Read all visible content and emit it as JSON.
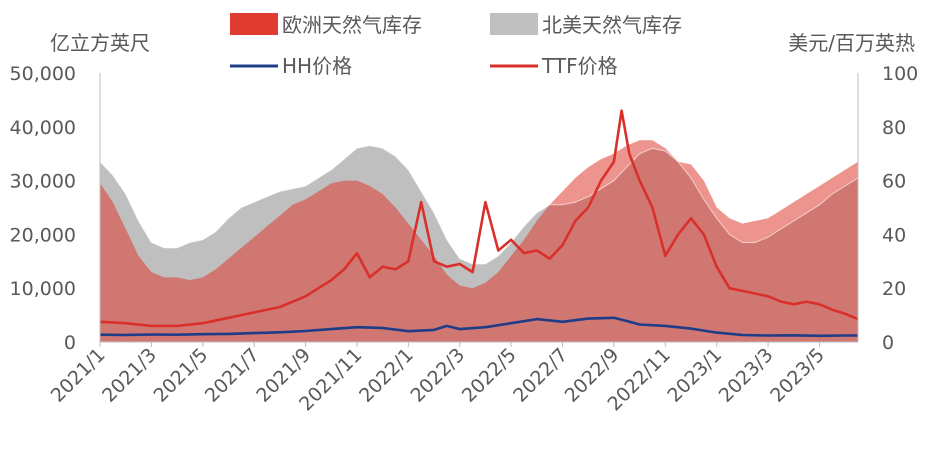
{
  "chart_data": {
    "type": "area",
    "left_axis_title": "亿立方英尺",
    "right_axis_title": "美元/百万英热",
    "left_ylim": [
      0,
      50000
    ],
    "right_ylim": [
      0,
      100
    ],
    "left_ticks": [
      "0",
      "10,000",
      "20,000",
      "30,000",
      "40,000",
      "50,000"
    ],
    "right_ticks": [
      "0",
      "20",
      "40",
      "60",
      "80",
      "100"
    ],
    "x_tick_labels": [
      "2021/1",
      "2021/3",
      "2021/5",
      "2021/7",
      "2021/9",
      "2021/11",
      "2022/1",
      "2022/3",
      "2022/5",
      "2022/7",
      "2022/9",
      "2022/11",
      "2023/1",
      "2023/3",
      "2023/5"
    ],
    "x_domain_months": [
      0,
      29.5
    ],
    "legend": [
      {
        "name": "欧洲天然气库存",
        "kind": "area",
        "color": "#E03C31"
      },
      {
        "name": "北美天然气库存",
        "kind": "area",
        "color": "#BFBFBF"
      },
      {
        "name": "HH价格",
        "kind": "line",
        "color": "#1F3C88"
      },
      {
        "name": "TTF价格",
        "kind": "line",
        "color": "#D9302B"
      }
    ],
    "series": [
      {
        "name": "北美天然气库存",
        "axis": "left",
        "type": "area",
        "color": "#BFBFBF",
        "points": [
          [
            0,
            33500
          ],
          [
            0.5,
            31000
          ],
          [
            1,
            27500
          ],
          [
            1.5,
            22500
          ],
          [
            2,
            18500
          ],
          [
            2.5,
            17500
          ],
          [
            3,
            17500
          ],
          [
            3.5,
            18500
          ],
          [
            4,
            19000
          ],
          [
            4.5,
            20500
          ],
          [
            5,
            23000
          ],
          [
            5.5,
            25000
          ],
          [
            6,
            26000
          ],
          [
            6.5,
            27000
          ],
          [
            7,
            28000
          ],
          [
            7.5,
            28500
          ],
          [
            8,
            29000
          ],
          [
            8.5,
            30500
          ],
          [
            9,
            32000
          ],
          [
            9.5,
            34000
          ],
          [
            10,
            36000
          ],
          [
            10.5,
            36500
          ],
          [
            11,
            36000
          ],
          [
            11.5,
            34500
          ],
          [
            12,
            32000
          ],
          [
            12.5,
            28000
          ],
          [
            13,
            24000
          ],
          [
            13.5,
            19000
          ],
          [
            14,
            15500
          ],
          [
            14.5,
            14500
          ],
          [
            15,
            14500
          ],
          [
            15.5,
            16000
          ],
          [
            16,
            18500
          ],
          [
            16.5,
            21500
          ],
          [
            17,
            24000
          ],
          [
            17.5,
            25500
          ],
          [
            18,
            25500
          ],
          [
            18.5,
            26000
          ],
          [
            19,
            27000
          ],
          [
            19.5,
            28500
          ],
          [
            20,
            30000
          ],
          [
            20.5,
            32500
          ],
          [
            21,
            35000
          ],
          [
            21.5,
            36000
          ],
          [
            22,
            35500
          ],
          [
            22.5,
            33500
          ],
          [
            23,
            30500
          ],
          [
            23.5,
            26500
          ],
          [
            24,
            23000
          ],
          [
            24.5,
            20000
          ],
          [
            25,
            18500
          ],
          [
            25.5,
            18500
          ],
          [
            26,
            19500
          ],
          [
            26.5,
            21000
          ],
          [
            27,
            22500
          ],
          [
            27.5,
            24000
          ],
          [
            28,
            25500
          ],
          [
            28.5,
            27500
          ],
          [
            29,
            29000
          ],
          [
            29.5,
            30500
          ]
        ]
      },
      {
        "name": "欧洲天然气库存",
        "axis": "left",
        "type": "area",
        "color": "#E03C31",
        "points": [
          [
            0,
            29500
          ],
          [
            0.5,
            26000
          ],
          [
            1,
            21000
          ],
          [
            1.5,
            16000
          ],
          [
            2,
            13000
          ],
          [
            2.5,
            12000
          ],
          [
            3,
            12000
          ],
          [
            3.5,
            11500
          ],
          [
            4,
            12000
          ],
          [
            4.5,
            13500
          ],
          [
            5,
            15500
          ],
          [
            5.5,
            17500
          ],
          [
            6,
            19500
          ],
          [
            6.5,
            21500
          ],
          [
            7,
            23500
          ],
          [
            7.5,
            25500
          ],
          [
            8,
            26500
          ],
          [
            8.5,
            28000
          ],
          [
            9,
            29500
          ],
          [
            9.5,
            30000
          ],
          [
            10,
            30000
          ],
          [
            10.5,
            29000
          ],
          [
            11,
            27500
          ],
          [
            11.5,
            25000
          ],
          [
            12,
            22000
          ],
          [
            12.5,
            19000
          ],
          [
            13,
            16000
          ],
          [
            13.5,
            12500
          ],
          [
            14,
            10500
          ],
          [
            14.5,
            10000
          ],
          [
            15,
            11000
          ],
          [
            15.5,
            13000
          ],
          [
            16,
            16000
          ],
          [
            16.5,
            19000
          ],
          [
            17,
            22500
          ],
          [
            17.5,
            25500
          ],
          [
            18,
            28000
          ],
          [
            18.5,
            30500
          ],
          [
            19,
            32500
          ],
          [
            19.5,
            34000
          ],
          [
            20,
            35000
          ],
          [
            20.5,
            36500
          ],
          [
            21,
            37500
          ],
          [
            21.5,
            37500
          ],
          [
            22,
            36000
          ],
          [
            22.5,
            33500
          ],
          [
            23,
            33000
          ],
          [
            23.5,
            30000
          ],
          [
            24,
            25000
          ],
          [
            24.5,
            23000
          ],
          [
            25,
            22000
          ],
          [
            25.5,
            22500
          ],
          [
            26,
            23000
          ],
          [
            26.5,
            24500
          ],
          [
            27,
            26000
          ],
          [
            27.5,
            27500
          ],
          [
            28,
            29000
          ],
          [
            28.5,
            30500
          ],
          [
            29,
            32000
          ],
          [
            29.5,
            33500
          ]
        ]
      },
      {
        "name": "HH价格",
        "axis": "right",
        "type": "line",
        "color": "#1F3C88",
        "points": [
          [
            0,
            2.7
          ],
          [
            1,
            2.6
          ],
          [
            2,
            2.8
          ],
          [
            3,
            2.7
          ],
          [
            4,
            2.9
          ],
          [
            5,
            3.0
          ],
          [
            6,
            3.3
          ],
          [
            7,
            3.6
          ],
          [
            8,
            4.1
          ],
          [
            9,
            4.8
          ],
          [
            10,
            5.5
          ],
          [
            11,
            5.2
          ],
          [
            12,
            4.0
          ],
          [
            13,
            4.5
          ],
          [
            13.5,
            6.0
          ],
          [
            14,
            4.8
          ],
          [
            15,
            5.5
          ],
          [
            16,
            7.0
          ],
          [
            17,
            8.5
          ],
          [
            18,
            7.5
          ],
          [
            19,
            8.7
          ],
          [
            20,
            9.0
          ],
          [
            20.5,
            7.8
          ],
          [
            21,
            6.5
          ],
          [
            22,
            6.0
          ],
          [
            23,
            5.0
          ],
          [
            24,
            3.5
          ],
          [
            25,
            2.6
          ],
          [
            26,
            2.4
          ],
          [
            27,
            2.5
          ],
          [
            28,
            2.3
          ],
          [
            29,
            2.4
          ],
          [
            29.5,
            2.4
          ]
        ]
      },
      {
        "name": "TTF价格",
        "axis": "right",
        "type": "line",
        "color": "#D9302B",
        "points": [
          [
            0,
            7.5
          ],
          [
            1,
            7.0
          ],
          [
            2,
            6.0
          ],
          [
            3,
            6.0
          ],
          [
            4,
            7.0
          ],
          [
            5,
            9.0
          ],
          [
            6,
            11.0
          ],
          [
            7,
            13.0
          ],
          [
            8,
            17.0
          ],
          [
            9,
            23.0
          ],
          [
            9.5,
            27.0
          ],
          [
            10,
            33.0
          ],
          [
            10.5,
            24.0
          ],
          [
            11,
            28.0
          ],
          [
            11.5,
            27.0
          ],
          [
            12,
            30.0
          ],
          [
            12.5,
            52.0
          ],
          [
            13,
            30.0
          ],
          [
            13.5,
            28.0
          ],
          [
            14,
            29.0
          ],
          [
            14.5,
            26.0
          ],
          [
            15,
            52.0
          ],
          [
            15.5,
            34.0
          ],
          [
            16,
            38.0
          ],
          [
            16.5,
            33.0
          ],
          [
            17,
            34.0
          ],
          [
            17.5,
            31.0
          ],
          [
            18,
            36.0
          ],
          [
            18.5,
            45.0
          ],
          [
            19,
            50.0
          ],
          [
            19.5,
            60.0
          ],
          [
            20,
            67.0
          ],
          [
            20.3,
            86.0
          ],
          [
            20.6,
            70.0
          ],
          [
            21,
            60.0
          ],
          [
            21.5,
            50.0
          ],
          [
            22,
            32.0
          ],
          [
            22.5,
            40.0
          ],
          [
            23,
            46.0
          ],
          [
            23.5,
            40.0
          ],
          [
            24,
            28.0
          ],
          [
            24.5,
            20.0
          ],
          [
            25,
            19.0
          ],
          [
            26,
            17.0
          ],
          [
            26.5,
            15.0
          ],
          [
            27,
            14.0
          ],
          [
            27.5,
            15.0
          ],
          [
            28,
            14.0
          ],
          [
            28.5,
            12.0
          ],
          [
            29,
            10.5
          ],
          [
            29.5,
            8.5
          ]
        ]
      }
    ]
  }
}
